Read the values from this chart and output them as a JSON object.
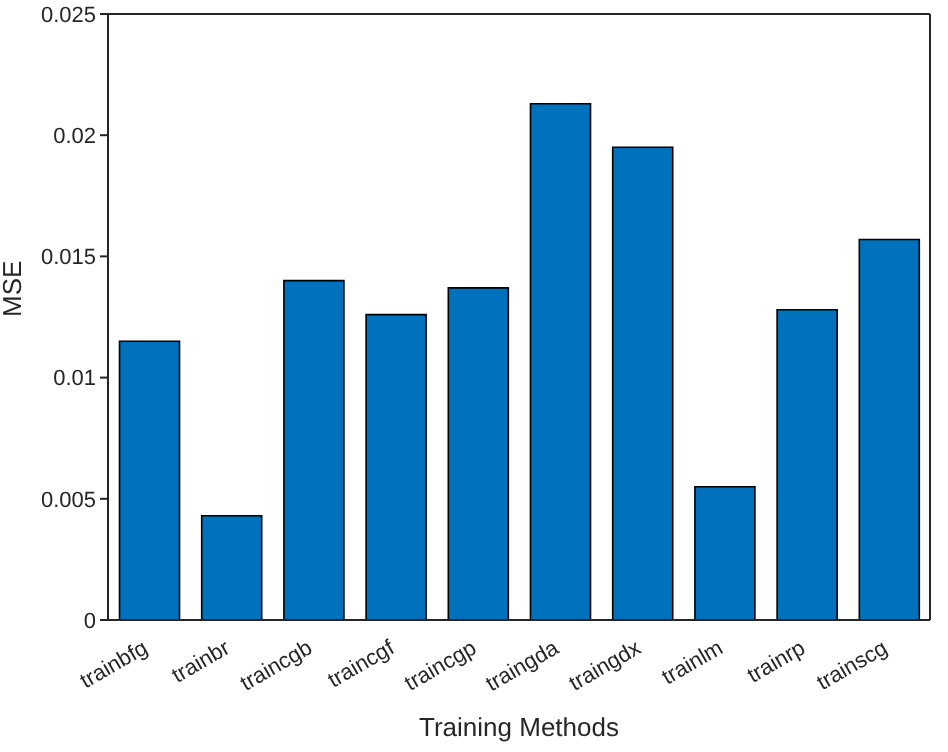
{
  "chart_data": {
    "type": "bar",
    "xlabel": "Training Methods",
    "ylabel": "MSE",
    "categories": [
      "trainbfg",
      "trainbr",
      "traincgb",
      "traincgf",
      "traincgp",
      "traingda",
      "traingdx",
      "trainlm",
      "trainrp",
      "trainscg"
    ],
    "values": [
      0.0115,
      0.0043,
      0.014,
      0.0126,
      0.0137,
      0.0213,
      0.0195,
      0.0055,
      0.0128,
      0.0157
    ],
    "color": "#0072bd",
    "ylim": [
      0,
      0.025
    ],
    "yticks": [
      0,
      0.005,
      0.01,
      0.015,
      0.02,
      0.025
    ],
    "grid": false
  }
}
